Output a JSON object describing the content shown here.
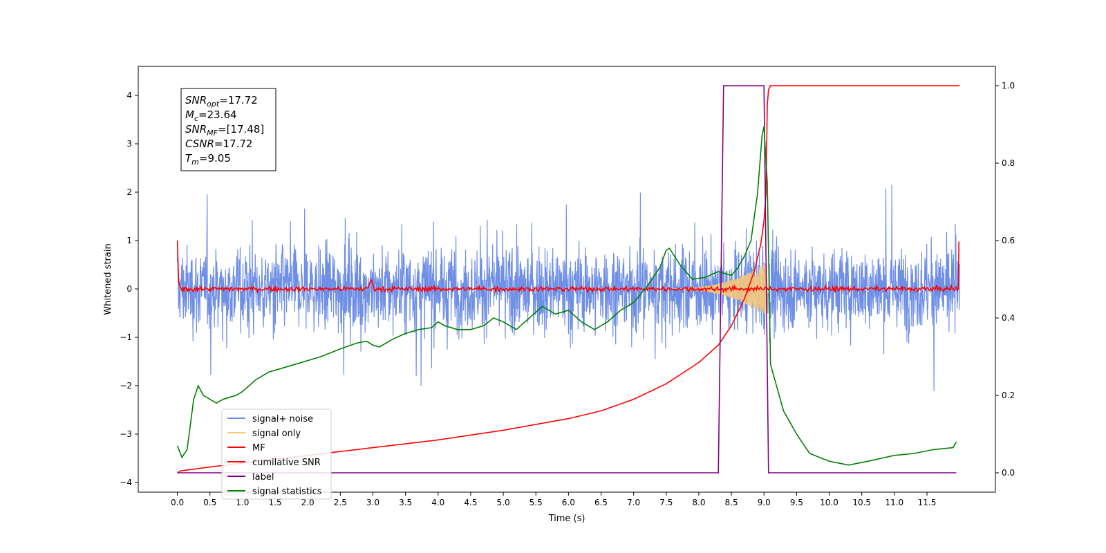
{
  "chart_data": {
    "type": "line",
    "xlabel": "Time (s)",
    "ylabel": "Whitened strain",
    "xlim": [
      -0.6,
      12.55
    ],
    "ylim_left": [
      -4.2,
      4.6
    ],
    "ylim_right": [
      -0.05,
      1.05
    ],
    "x_ticks": [
      0.0,
      0.5,
      1.0,
      1.5,
      2.0,
      2.5,
      3.0,
      3.5,
      4.0,
      4.5,
      5.0,
      5.5,
      6.0,
      6.5,
      7.0,
      7.5,
      8.0,
      8.5,
      9.0,
      9.5,
      10.0,
      10.5,
      11.0,
      11.5
    ],
    "x_tick_labels": [
      "0.0",
      "0.5",
      "1.0",
      "1.5",
      "2.0",
      "2.5",
      "3.0",
      "3.5",
      "4.0",
      "4.5",
      "5.0",
      "5.5",
      "6.0",
      "6.5",
      "7.0",
      "7.5",
      "8.0",
      "8.5",
      "9.0",
      "9.5",
      "10.0",
      "10.5",
      "11.0",
      "11.5"
    ],
    "y_left_ticks": [
      -4,
      -3,
      -2,
      -1,
      0,
      1,
      2,
      3,
      4
    ],
    "y_left_tick_labels": [
      "−4",
      "−3",
      "−2",
      "−1",
      "0",
      "1",
      "2",
      "3",
      "4"
    ],
    "y_right_ticks": [
      0.0,
      0.2,
      0.4,
      0.6,
      0.8,
      1.0
    ],
    "y_right_tick_labels": [
      "0.0",
      "0.2",
      "0.4",
      "0.6",
      "0.8",
      "1.0"
    ],
    "grid": false,
    "legend_position": "lower-left",
    "series": [
      {
        "name": "signal+ noise",
        "color": "#6f8fe6",
        "axis": "left",
        "style": "dense-noise",
        "sigma": 0.6,
        "t_start": 0.0,
        "t_end": 12.0
      },
      {
        "name": "signal only",
        "color": "#f5c87a",
        "axis": "left",
        "style": "chirp",
        "t_start": 7.6,
        "t_end": 9.05,
        "peak_amplitude": 0.55
      },
      {
        "name": "MF",
        "color": "#ff0000",
        "axis": "left",
        "style": "noisy-baseline",
        "t_start": 0.0,
        "t_end": 12.0
      },
      {
        "name": "cumilative SNR",
        "color": "#ff0000",
        "axis": "right",
        "x": [
          0.0,
          0.05,
          0.5,
          1.0,
          2.0,
          3.0,
          4.0,
          5.0,
          6.0,
          6.5,
          7.0,
          7.5,
          8.0,
          8.3,
          8.5,
          8.7,
          8.85,
          8.95,
          9.0,
          9.03,
          9.05,
          9.07,
          9.1,
          12.0
        ],
        "y": [
          0.0,
          0.005,
          0.015,
          0.025,
          0.045,
          0.065,
          0.085,
          0.11,
          0.14,
          0.16,
          0.19,
          0.23,
          0.285,
          0.33,
          0.38,
          0.45,
          0.52,
          0.59,
          0.65,
          0.72,
          0.95,
          0.99,
          1.0,
          1.0
        ]
      },
      {
        "name": "label",
        "color": "#800080",
        "axis": "right",
        "x": [
          0.0,
          8.3,
          8.38,
          9.0,
          9.07,
          11.95
        ],
        "y": [
          0.0,
          0.0,
          1.0,
          1.0,
          0.0,
          0.0
        ]
      },
      {
        "name": "signal statistics",
        "color": "#008000",
        "axis": "right",
        "x": [
          0.0,
          0.07,
          0.15,
          0.25,
          0.32,
          0.4,
          0.5,
          0.6,
          0.7,
          0.8,
          0.9,
          1.0,
          1.2,
          1.4,
          1.6,
          1.8,
          2.0,
          2.2,
          2.5,
          2.75,
          2.9,
          3.0,
          3.1,
          3.3,
          3.5,
          3.7,
          3.9,
          4.0,
          4.1,
          4.3,
          4.5,
          4.7,
          4.85,
          5.0,
          5.2,
          5.4,
          5.6,
          5.8,
          6.0,
          6.2,
          6.4,
          6.6,
          6.8,
          7.0,
          7.2,
          7.4,
          7.5,
          7.55,
          7.7,
          7.9,
          8.1,
          8.3,
          8.5,
          8.6,
          8.7,
          8.8,
          8.9,
          8.97,
          9.0,
          9.05,
          9.1,
          9.2,
          9.3,
          9.5,
          9.7,
          10.0,
          10.3,
          10.6,
          11.0,
          11.3,
          11.6,
          11.9,
          11.95
        ],
        "y": [
          0.07,
          0.04,
          0.06,
          0.19,
          0.225,
          0.2,
          0.19,
          0.18,
          0.19,
          0.195,
          0.2,
          0.21,
          0.24,
          0.26,
          0.27,
          0.28,
          0.29,
          0.3,
          0.32,
          0.335,
          0.34,
          0.33,
          0.325,
          0.345,
          0.36,
          0.37,
          0.375,
          0.39,
          0.38,
          0.37,
          0.37,
          0.38,
          0.4,
          0.39,
          0.37,
          0.4,
          0.43,
          0.41,
          0.42,
          0.39,
          0.37,
          0.39,
          0.42,
          0.44,
          0.48,
          0.53,
          0.575,
          0.58,
          0.54,
          0.5,
          0.505,
          0.52,
          0.51,
          0.53,
          0.56,
          0.6,
          0.72,
          0.87,
          0.895,
          0.75,
          0.28,
          0.22,
          0.16,
          0.1,
          0.05,
          0.03,
          0.02,
          0.03,
          0.045,
          0.05,
          0.06,
          0.065,
          0.08
        ]
      }
    ],
    "annotation": {
      "lines": [
        {
          "sym": "SNR",
          "sub": "opt",
          "value": "=17.72"
        },
        {
          "sym": "M",
          "sub": "c",
          "value": "=23.64"
        },
        {
          "sym": "SNR",
          "sub": "MF",
          "value": "=[17.48]"
        },
        {
          "sym": "CSNR",
          "sub": "",
          "value": "=17.72"
        },
        {
          "sym": "T",
          "sub": "m",
          "value": "=9.05"
        }
      ]
    }
  }
}
